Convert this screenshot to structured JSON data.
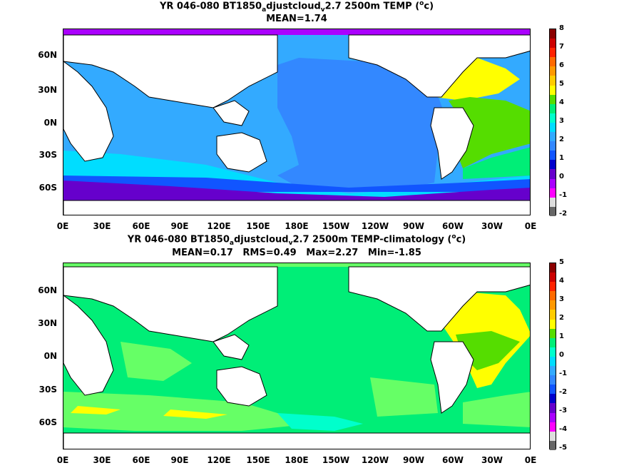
{
  "panels": [
    {
      "title_line1_pre": "YR 046-080 BT1850",
      "title_sub1": "a",
      "title_mid": "djustcloud",
      "title_sub2": "v",
      "title_post": "2.7 2500m TEMP (",
      "title_sup": "o",
      "title_end": "c)",
      "stats": "MEAN=1.74",
      "colorbar": {
        "labels": [
          "8",
          "7",
          "6",
          "5",
          "4",
          "3",
          "2",
          "1",
          "0",
          "-1",
          "-2"
        ],
        "colors": [
          "#8b0000",
          "#cc0000",
          "#ff2200",
          "#ff6a00",
          "#ff9900",
          "#ffcc00",
          "#ffff00",
          "#55dd00",
          "#00ee77",
          "#00ffcc",
          "#00ddff",
          "#33aaff",
          "#3388ff",
          "#1155ff",
          "#0000cc",
          "#6600cc",
          "#aa00ff",
          "#ff00ff",
          "#dddddd",
          "#666666"
        ]
      }
    },
    {
      "title_line1_pre": "YR 046-080 BT1850",
      "title_sub1": "a",
      "title_mid": "djustcloud",
      "title_sub2": "v",
      "title_post": "2.7 2500m TEMP-climatology (",
      "title_sup": "o",
      "title_end": "c)",
      "stats": "MEAN=0.17   RMS=0.49   Max=2.27   Min=-1.85",
      "colorbar": {
        "labels": [
          "5",
          "4",
          "3",
          "2",
          "1",
          "0",
          "-1",
          "-2",
          "-3",
          "-4",
          "-5"
        ],
        "colors": [
          "#8b0000",
          "#cc0000",
          "#ff2200",
          "#ff6a00",
          "#ff9900",
          "#ffcc00",
          "#ffff00",
          "#55dd00",
          "#00ee77",
          "#00ffcc",
          "#00ddff",
          "#33aaff",
          "#3388ff",
          "#1155ff",
          "#0000cc",
          "#6600cc",
          "#aa00ff",
          "#ff00ff",
          "#dddddd",
          "#666666"
        ]
      }
    }
  ],
  "lat_labels": [
    "60N",
    "30N",
    "0N",
    "30S",
    "60S"
  ],
  "lon_labels": [
    "0E",
    "30E",
    "60E",
    "90E",
    "120E",
    "150E",
    "180E",
    "150W",
    "120W",
    "90W",
    "60W",
    "30W",
    "0E"
  ],
  "map_colors": {
    "land": "#ffffff",
    "coast": "#000000",
    "pacific_top": "#3388ff",
    "indian_top": "#33aaff",
    "southern_top": "#00ddff",
    "southern_band": "#1155ff",
    "antarctic_top": "#6600cc",
    "atlantic_warm": "#ffff00",
    "atlantic_mid": "#55dd00",
    "atlantic_south": "#00ee77",
    "diff_base": "#00ee77",
    "diff_light": "#66ff66",
    "diff_warm": "#ffff00",
    "diff_cyan": "#00ffcc"
  }
}
